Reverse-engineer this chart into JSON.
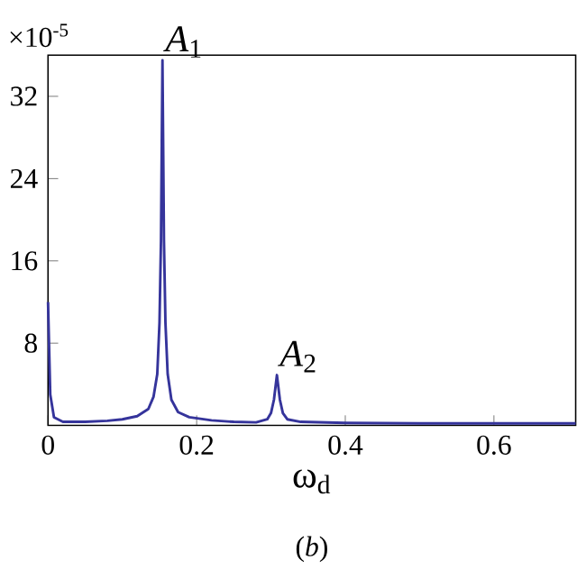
{
  "chart_data": {
    "type": "line",
    "xlabel": "ω$_{d}$",
    "annotations": [
      "×10$^{-5}$",
      {
        "text": "*A*$_{1}$",
        "x": 0.154,
        "y": 35.5
      },
      {
        "text": "*A*$_{2}$",
        "x": 0.308,
        "y": 4.9
      },
      "(*b*)"
    ],
    "x": [
      0,
      0.003,
      0.008,
      0.02,
      0.05,
      0.08,
      0.1,
      0.12,
      0.135,
      0.142,
      0.147,
      0.15,
      0.152,
      0.154,
      0.156,
      0.158,
      0.161,
      0.166,
      0.175,
      0.19,
      0.22,
      0.25,
      0.28,
      0.295,
      0.3,
      0.304,
      0.308,
      0.312,
      0.316,
      0.322,
      0.34,
      0.4,
      0.5,
      0.6,
      0.71
    ],
    "series": [
      {
        "color": "#35349b",
        "values": [
          12,
          3,
          0.8,
          0.35,
          0.35,
          0.45,
          0.6,
          0.9,
          1.6,
          2.8,
          5,
          10,
          18,
          35.5,
          18,
          10,
          5,
          2.5,
          1.3,
          0.8,
          0.5,
          0.35,
          0.3,
          0.6,
          1.2,
          2.5,
          4.9,
          2.5,
          1.2,
          0.6,
          0.35,
          0.25,
          0.2,
          0.2,
          0.2
        ]
      }
    ],
    "xlim": [
      0,
      0.71
    ],
    "ylim": [
      0,
      36
    ],
    "xticks": [
      0,
      0.2,
      0.4,
      0.6
    ],
    "yticks": [
      8,
      16,
      24,
      32
    ]
  }
}
